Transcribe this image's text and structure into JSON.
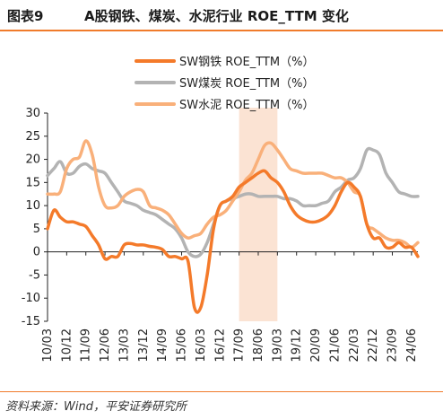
{
  "header": {
    "figure_label": "图表9",
    "title": "A股钢铁、煤炭、水泥行业 ROE_TTM 变化"
  },
  "source": "资料来源：Wind，平安证券研究所",
  "colors": {
    "steel": "#f47a2a",
    "coal": "#b3b3b3",
    "cement": "#f9b07a",
    "highlight": "#fbe3d3",
    "accent": "#f07b2b"
  },
  "chart_data": {
    "type": "line",
    "title": "",
    "xlabel": "",
    "ylabel": "",
    "ylim": [
      -15,
      30
    ],
    "yticks": [
      -15,
      -10,
      -5,
      0,
      5,
      10,
      15,
      20,
      25,
      30
    ],
    "xticks": [
      "10/03",
      "10/12",
      "11/09",
      "12/06",
      "13/03",
      "13/12",
      "14/09",
      "15/06",
      "16/03",
      "16/12",
      "17/09",
      "18/06",
      "19/03",
      "19/12",
      "20/09",
      "21/06",
      "22/03",
      "22/12",
      "23/09",
      "24/06"
    ],
    "x_quarters": [
      "10/03",
      "10/06",
      "10/09",
      "10/12",
      "11/03",
      "11/06",
      "11/09",
      "11/12",
      "12/03",
      "12/06",
      "12/09",
      "12/12",
      "13/03",
      "13/06",
      "13/09",
      "13/12",
      "14/03",
      "14/06",
      "14/09",
      "14/12",
      "15/03",
      "15/06",
      "15/09",
      "15/12",
      "16/03",
      "16/06",
      "16/09",
      "16/12",
      "17/03",
      "17/06",
      "17/09",
      "17/12",
      "18/03",
      "18/06",
      "18/09",
      "18/12",
      "19/03",
      "19/06",
      "19/09",
      "19/12",
      "20/03",
      "20/06",
      "20/09",
      "20/12",
      "21/03",
      "21/06",
      "21/09",
      "21/12",
      "22/03",
      "22/06",
      "22/09",
      "22/12",
      "23/03",
      "23/06",
      "23/09",
      "23/12",
      "24/03",
      "24/06",
      "24/09"
    ],
    "highlight_range": [
      "17/09",
      "19/03"
    ],
    "grid": false,
    "legend_position": "top",
    "series": [
      {
        "name": "SW钢铁 ROE_TTM（%）",
        "values": [
          5,
          9,
          7.5,
          6.5,
          6.5,
          6,
          5.5,
          3.5,
          1.5,
          -1.5,
          -1,
          -1,
          1.5,
          1.8,
          1.5,
          1.5,
          1.2,
          1,
          0.5,
          -1,
          -1,
          -1.5,
          -2,
          -12,
          -12,
          -5,
          5,
          10,
          11,
          12,
          14,
          15,
          16,
          17,
          17.5,
          16,
          15,
          13,
          10,
          8,
          7,
          6.5,
          6.5,
          7,
          8,
          10,
          13,
          15,
          14,
          12,
          6,
          3,
          3,
          1,
          1,
          2,
          1,
          1,
          -1
        ]
      },
      {
        "name": "SW煤炭 ROE_TTM（%）",
        "values": [
          16.5,
          18,
          19.5,
          17,
          17,
          18.5,
          19,
          18,
          17.5,
          17,
          15,
          13,
          11,
          10.5,
          10,
          9,
          8.5,
          8,
          7,
          6,
          5,
          3,
          0,
          -1,
          -0.5,
          2,
          6,
          10,
          11,
          11.5,
          12,
          12.5,
          12.5,
          12,
          12,
          12,
          12,
          11.5,
          11.5,
          11,
          10,
          10,
          10,
          10.5,
          11,
          13,
          14,
          15.5,
          16,
          18,
          22,
          22,
          21,
          17,
          15,
          13,
          12.5,
          12,
          12
        ]
      },
      {
        "name": "SW水泥 ROE_TTM（%）",
        "values": [
          12.5,
          12.5,
          13,
          18,
          20,
          20.5,
          24,
          21,
          14,
          10,
          9.5,
          10,
          12,
          13,
          13.5,
          13,
          10,
          9.5,
          9,
          8,
          6,
          4,
          3,
          3.5,
          4,
          6,
          7.5,
          8,
          9,
          11,
          13,
          15.5,
          17,
          20,
          23,
          23.5,
          22,
          20,
          18,
          17.5,
          17,
          17,
          17,
          17,
          16.5,
          16,
          16,
          15,
          13,
          12,
          6,
          5,
          4,
          3,
          2.5,
          2.5,
          2,
          1,
          2
        ]
      }
    ]
  }
}
